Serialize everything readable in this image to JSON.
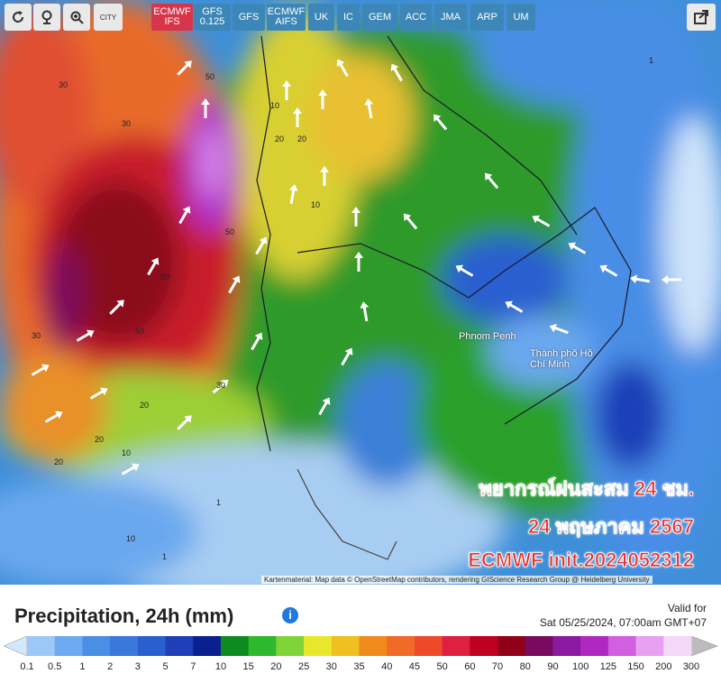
{
  "toolbar": {
    "city_button": "CITY",
    "models": [
      "ECMWF IFS",
      "GFS 0.125",
      "GFS",
      "ECMWF AIFS",
      "UK",
      "IC",
      "GEM",
      "ACC",
      "JMA",
      "ARP",
      "UM"
    ],
    "active_index": 0,
    "active_color": "#d9354a",
    "color": "#3d87b8"
  },
  "map": {
    "places": [
      "Phnom Penh",
      "Thành phố Hồ Chí Minh"
    ],
    "contour_labels": [
      30,
      30,
      50,
      20,
      20,
      10,
      10,
      50,
      50,
      30,
      30,
      20,
      20,
      10,
      10,
      1,
      1,
      50,
      20,
      1
    ],
    "overlay": [
      "พยากรณ์ฝนสะสม 24 ชม.",
      "24 พฤษภาคม 2567",
      "ECMWF init.2024052312"
    ],
    "attribution": "Kartenmaterial: Map data © OpenStreetMap contributors, rendering GIScience Research Group @ Heidelberg University"
  },
  "footer": {
    "title": "Precipitation, 24h (mm)",
    "valid_label": "Valid for",
    "valid_time": "Sat 05/25/2024, 07:00am GMT+07"
  },
  "legend": {
    "ticks": [
      0.1,
      0.5,
      1,
      2,
      3,
      5,
      7,
      10,
      15,
      20,
      25,
      30,
      35,
      40,
      45,
      50,
      60,
      70,
      80,
      90,
      100,
      125,
      150,
      200,
      300
    ],
    "colors": [
      "#9cc8f8",
      "#6eaaf0",
      "#4a8ee6",
      "#3a78dc",
      "#2a5fd0",
      "#1e3fb8",
      "#0a1f90",
      "#0f8a1e",
      "#2db82e",
      "#7fd43a",
      "#e8e82a",
      "#f0c020",
      "#f08a1a",
      "#f06a28",
      "#ee4a2a",
      "#e02040",
      "#c00020",
      "#900018",
      "#780a60",
      "#8a1aa0",
      "#b028c0",
      "#d060e0",
      "#e8a0f0",
      "#f4d8f8"
    ],
    "below_color": "#d4e8fb",
    "above_color": "#bcbcbc"
  }
}
